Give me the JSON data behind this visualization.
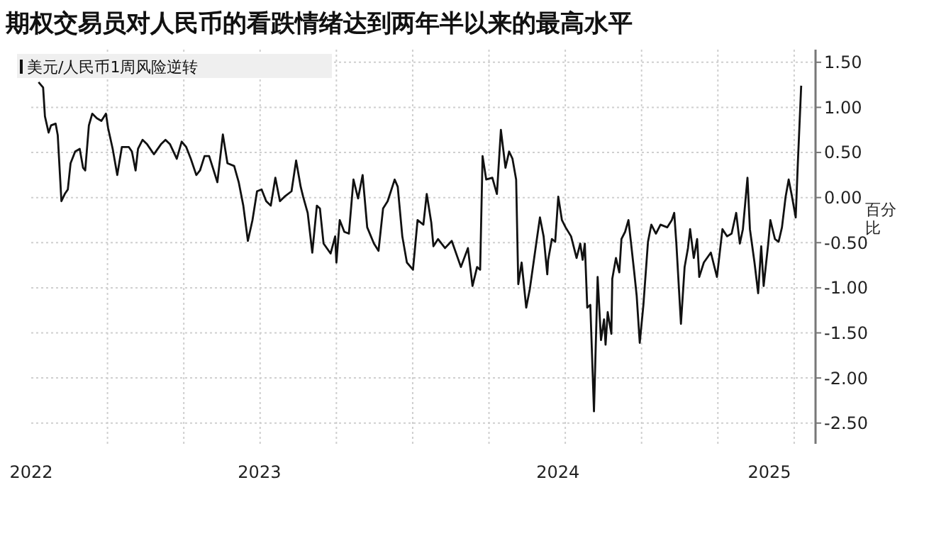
{
  "chart_data": {
    "type": "line",
    "title": "期权交易员对人民币的看跌情绪达到两年半以来的最高水平",
    "ylabel": "百分比",
    "legend": "top left",
    "grid": true,
    "xlim": [
      2022.5,
      2025.07
    ],
    "ylim": [
      -2.73,
      1.64
    ],
    "xticks": [
      {
        "value": 2022.5,
        "label": "2022"
      },
      {
        "value": 2022.75,
        "label": null
      },
      {
        "value": 2023.0,
        "label": null
      },
      {
        "value": 2023.248,
        "label": "2023"
      },
      {
        "value": 2023.25,
        "label": null
      },
      {
        "value": 2023.5,
        "label": null
      },
      {
        "value": 2023.75,
        "label": null
      },
      {
        "value": 2024.0,
        "label": null
      },
      {
        "value": 2024.226,
        "label": "2024"
      },
      {
        "value": 2024.25,
        "label": null
      },
      {
        "value": 2024.5,
        "label": null
      },
      {
        "value": 2024.75,
        "label": null
      },
      {
        "value": 2024.919,
        "label": "2025"
      },
      {
        "value": 2025.0,
        "label": null
      }
    ],
    "yticks": [
      {
        "value": 1.5,
        "label": "1.50"
      },
      {
        "value": 1,
        "label": "1.00"
      },
      {
        "value": 0.5,
        "label": "0.50"
      },
      {
        "value": 0,
        "label": "0.00"
      },
      {
        "value": -0.5,
        "label": "-0.50"
      },
      {
        "value": -1,
        "label": "-1.00"
      },
      {
        "value": -1.5,
        "label": "-1.50"
      },
      {
        "value": -2,
        "label": "-2.00"
      },
      {
        "value": -2.5,
        "label": "-2.50"
      }
    ],
    "series": [
      {
        "name": "美元/人民币1周风险逆转",
        "color": "#111111",
        "x": [
          2022.524,
          2022.539,
          2022.545,
          2022.557,
          2022.565,
          2022.58,
          2022.587,
          2022.599,
          2022.61,
          2022.62,
          2022.629,
          2022.644,
          2022.659,
          2022.67,
          2022.677,
          2022.689,
          2022.7,
          2022.715,
          2022.73,
          2022.745,
          2022.752,
          2022.767,
          2022.782,
          2022.797,
          2022.82,
          2022.83,
          2022.842,
          2022.85,
          2022.865,
          2022.88,
          2022.902,
          2022.925,
          2022.94,
          2022.955,
          2022.977,
          2022.993,
          2023.008,
          2023.023,
          2023.041,
          2023.053,
          2023.068,
          2023.083,
          2023.098,
          2023.11,
          2023.128,
          2023.143,
          2023.165,
          2023.18,
          2023.195,
          2023.21,
          2023.225,
          2023.24,
          2023.255,
          2023.27,
          2023.285,
          2023.3,
          2023.315,
          2023.33,
          2023.353,
          2023.368,
          2023.383,
          2023.391,
          2023.406,
          2023.421,
          2023.436,
          2023.446,
          2023.458,
          2023.481,
          2023.496,
          2023.5,
          2023.511,
          2023.526,
          2023.541,
          2023.556,
          2023.571,
          2023.586,
          2023.601,
          2023.623,
          2023.638,
          2023.653,
          2023.668,
          2023.691,
          2023.701,
          2023.716,
          2023.731,
          2023.751,
          2023.766,
          2023.785,
          2023.796,
          2023.811,
          2023.818,
          2023.833,
          2023.856,
          2023.878,
          2023.908,
          2023.931,
          2023.946,
          2023.961,
          2023.971,
          2023.979,
          2023.991,
          2024.011,
          2024.026,
          2024.039,
          2024.054,
          2024.066,
          2024.077,
          2024.089,
          2024.096,
          2024.107,
          2024.122,
          2024.134,
          2024.156,
          2024.167,
          2024.179,
          2024.191,
          2024.194,
          2024.206,
          2024.217,
          2024.227,
          2024.239,
          2024.251,
          2024.269,
          2024.287,
          2024.299,
          2024.307,
          2024.314,
          2024.322,
          2024.332,
          2024.344,
          2024.356,
          2024.367,
          2024.377,
          2024.382,
          2024.389,
          2024.401,
          2024.404,
          2024.416,
          2024.427,
          2024.434,
          2024.446,
          2024.457,
          2024.464,
          2024.476,
          2024.484,
          2024.494,
          2024.506,
          2024.521,
          2024.532,
          2024.547,
          2024.562,
          2024.584,
          2024.599,
          2024.607,
          2024.614,
          2024.629,
          2024.641,
          2024.652,
          2024.659,
          2024.671,
          2024.682,
          2024.689,
          2024.704,
          2024.727,
          2024.747,
          2024.765,
          2024.78,
          2024.795,
          2024.81,
          2024.822,
          2024.832,
          2024.847,
          2024.855,
          2024.87,
          2024.882,
          2024.892,
          2024.9,
          2024.915,
          2024.922,
          2024.937,
          2024.949,
          2024.96,
          2024.972,
          2024.982,
          2024.993,
          2025.005,
          2025.012,
          2025.023
        ],
        "values": [
          1.28,
          1.22,
          0.9,
          0.72,
          0.8,
          0.82,
          0.69,
          -0.04,
          0.04,
          0.09,
          0.38,
          0.51,
          0.54,
          0.33,
          0.3,
          0.8,
          0.93,
          0.88,
          0.85,
          0.93,
          0.77,
          0.54,
          0.25,
          0.56,
          0.56,
          0.51,
          0.3,
          0.54,
          0.64,
          0.59,
          0.48,
          0.59,
          0.64,
          0.59,
          0.43,
          0.62,
          0.56,
          0.43,
          0.25,
          0.3,
          0.46,
          0.46,
          0.3,
          0.17,
          0.7,
          0.38,
          0.35,
          0.17,
          -0.09,
          -0.48,
          -0.25,
          0.07,
          0.09,
          -0.04,
          -0.09,
          0.22,
          -0.04,
          0.01,
          0.07,
          0.41,
          0.12,
          0.01,
          -0.17,
          -0.61,
          -0.09,
          -0.12,
          -0.51,
          -0.62,
          -0.43,
          -0.72,
          -0.25,
          -0.38,
          -0.4,
          0.2,
          -0.01,
          0.25,
          -0.33,
          -0.51,
          -0.59,
          -0.12,
          -0.04,
          0.2,
          0.12,
          -0.43,
          -0.72,
          -0.8,
          -0.25,
          -0.3,
          0.04,
          -0.28,
          -0.54,
          -0.46,
          -0.56,
          -0.48,
          -0.77,
          -0.56,
          -0.98,
          -0.77,
          -0.8,
          0.46,
          0.2,
          0.22,
          0.04,
          0.75,
          0.33,
          0.51,
          0.43,
          0.2,
          -0.96,
          -0.72,
          -1.22,
          -1.01,
          -0.48,
          -0.22,
          -0.43,
          -0.85,
          -0.69,
          -0.46,
          -0.49,
          0.01,
          -0.25,
          -0.33,
          -0.43,
          -0.67,
          -0.51,
          -0.69,
          -0.51,
          -1.22,
          -1.19,
          -2.37,
          -0.88,
          -1.58,
          -1.35,
          -1.63,
          -1.27,
          -1.51,
          -0.9,
          -0.67,
          -0.83,
          -0.46,
          -0.38,
          -0.25,
          -0.46,
          -0.83,
          -1.09,
          -1.61,
          -1.19,
          -0.49,
          -0.3,
          -0.4,
          -0.3,
          -0.33,
          -0.25,
          -0.17,
          -0.51,
          -1.4,
          -0.77,
          -0.56,
          -0.35,
          -0.67,
          -0.46,
          -0.88,
          -0.72,
          -0.61,
          -0.88,
          -0.35,
          -0.43,
          -0.4,
          -0.17,
          -0.51,
          -0.35,
          0.22,
          -0.35,
          -0.72,
          -1.06,
          -0.54,
          -0.98,
          -0.51,
          -0.25,
          -0.46,
          -0.49,
          -0.33,
          0.01,
          0.2,
          0.01,
          -0.22,
          0.38,
          1.24
        ]
      }
    ]
  }
}
